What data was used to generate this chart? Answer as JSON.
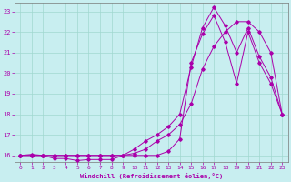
{
  "title": "",
  "xlabel": "Windchill (Refroidissement éolien,°C)",
  "ylabel": "",
  "bg_color": "#c8eef0",
  "grid_color": "#a0d8d0",
  "line_color": "#aa00aa",
  "xlim": [
    -0.5,
    23.5
  ],
  "ylim": [
    15.7,
    23.4
  ],
  "xticks": [
    0,
    1,
    2,
    3,
    4,
    5,
    6,
    7,
    8,
    9,
    10,
    11,
    12,
    13,
    14,
    15,
    16,
    17,
    18,
    19,
    20,
    21,
    22,
    23
  ],
  "yticks": [
    16,
    17,
    18,
    19,
    20,
    21,
    22,
    23
  ],
  "line1_x": [
    0,
    1,
    2,
    3,
    4,
    5,
    6,
    7,
    8,
    9,
    10,
    11,
    12,
    13,
    14,
    15,
    16,
    17,
    18,
    19,
    20,
    21,
    22,
    23
  ],
  "line1_y": [
    16.0,
    16.05,
    16.0,
    16.0,
    16.0,
    16.0,
    16.0,
    16.0,
    16.0,
    16.0,
    16.3,
    16.7,
    17.0,
    17.4,
    18.0,
    20.3,
    22.2,
    23.2,
    22.3,
    21.0,
    22.2,
    20.8,
    19.8,
    18.0
  ],
  "line2_x": [
    0,
    1,
    2,
    3,
    4,
    5,
    6,
    7,
    8,
    9,
    10,
    11,
    12,
    13,
    14,
    15,
    16,
    17,
    18,
    19,
    20,
    21,
    22,
    23
  ],
  "line2_y": [
    16.0,
    16.0,
    16.0,
    15.85,
    15.85,
    15.75,
    15.8,
    15.8,
    15.8,
    16.0,
    16.0,
    16.0,
    16.0,
    16.2,
    16.8,
    20.5,
    21.9,
    22.8,
    21.5,
    19.5,
    22.0,
    20.5,
    19.5,
    18.0
  ],
  "line3_x": [
    0,
    1,
    2,
    3,
    4,
    5,
    6,
    7,
    8,
    9,
    10,
    11,
    12,
    13,
    14,
    15,
    16,
    17,
    18,
    19,
    20,
    21,
    22,
    23
  ],
  "line3_y": [
    16.0,
    16.0,
    16.0,
    16.0,
    16.0,
    16.0,
    16.0,
    16.0,
    16.0,
    16.0,
    16.1,
    16.3,
    16.7,
    17.0,
    17.5,
    18.5,
    20.2,
    21.3,
    22.0,
    22.5,
    22.5,
    22.0,
    21.0,
    18.0
  ],
  "figwidth": 3.2,
  "figheight": 2.0,
  "dpi": 100
}
